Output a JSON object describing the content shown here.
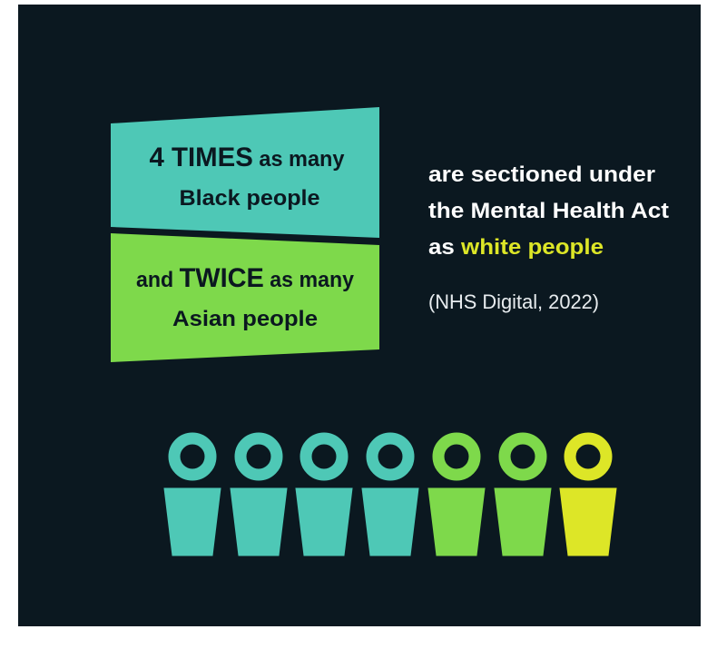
{
  "left_blocks": [
    {
      "emphasis": "4 TIMES",
      "rest": " as many",
      "line2": "Black people"
    },
    {
      "lead": "and ",
      "emphasis": "TWICE",
      "rest": " as many",
      "line2": "Asian people"
    }
  ],
  "statement": {
    "line1": "are sectioned under",
    "line2": "the Mental Health Act",
    "line3_lead": "as ",
    "line3_highlight": "white people"
  },
  "source": "(NHS Digital, 2022)"
}
